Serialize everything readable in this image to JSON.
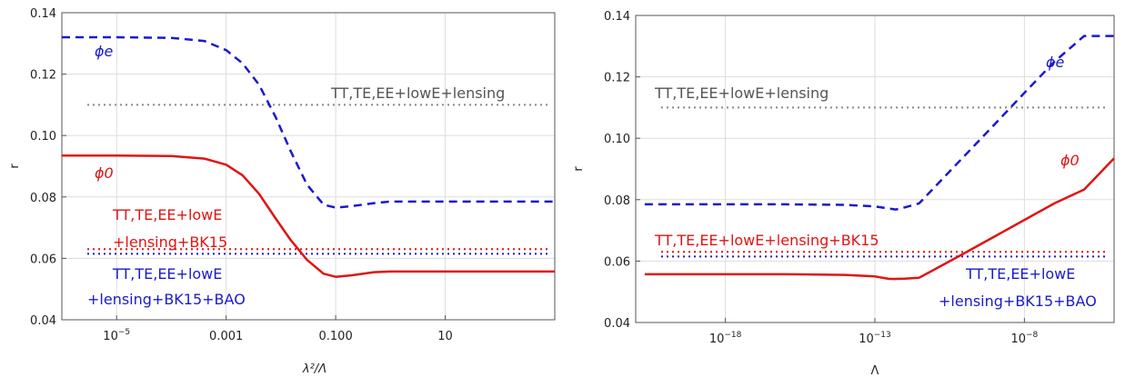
{
  "chart_data": [
    {
      "type": "line",
      "xscale": "log",
      "xlabel": "λ²/Λ",
      "ylabel": "r",
      "xlim": [
        1e-06,
        1000
      ],
      "ylim": [
        0.04,
        0.14
      ],
      "yticks": [
        "0.04",
        "0.06",
        "0.08",
        "0.10",
        "0.12",
        "0.14"
      ],
      "xticks": [
        {
          "value": 1e-05,
          "label": "10",
          "sup": "−5"
        },
        {
          "value": 0.001,
          "label": "0.001",
          "sup": ""
        },
        {
          "value": 0.1,
          "label": "0.100",
          "sup": ""
        },
        {
          "value": 10,
          "label": "10",
          "sup": ""
        }
      ],
      "grid": true,
      "series": [
        {
          "name": "ϕe",
          "color": "#1a1acc",
          "style": "dashed",
          "x": [
            1e-06,
            1e-05,
            0.0001,
            0.0004,
            0.001,
            0.002,
            0.004,
            0.008,
            0.015,
            0.03,
            0.06,
            0.1,
            0.2,
            0.5,
            1,
            10,
            100,
            1000
          ],
          "y": [
            0.132,
            0.132,
            0.1318,
            0.1308,
            0.1278,
            0.1235,
            0.1165,
            0.106,
            0.095,
            0.084,
            0.0775,
            0.0765,
            0.077,
            0.078,
            0.0785,
            0.0785,
            0.0785,
            0.0785
          ]
        },
        {
          "name": "ϕ0",
          "color": "#e01414",
          "style": "solid",
          "x": [
            1e-06,
            1e-05,
            0.0001,
            0.0004,
            0.001,
            0.002,
            0.004,
            0.008,
            0.015,
            0.03,
            0.06,
            0.1,
            0.2,
            0.5,
            1,
            10,
            100,
            1000
          ],
          "y": [
            0.0935,
            0.0935,
            0.0933,
            0.0925,
            0.0905,
            0.087,
            0.081,
            0.073,
            0.066,
            0.0595,
            0.055,
            0.054,
            0.0545,
            0.0555,
            0.0557,
            0.0557,
            0.0557,
            0.0557
          ]
        }
      ],
      "hlines": [
        {
          "y": 0.11,
          "color": "#888888"
        },
        {
          "y": 0.063,
          "color": "#e01414"
        },
        {
          "y": 0.0615,
          "color": "#1a1acc"
        }
      ],
      "annotations": [
        {
          "text": "TT,TE,EE+lowE+lensing",
          "color": "#555555"
        },
        {
          "text": "TT,TE,EE+lowE",
          "color": "#e01414"
        },
        {
          "text": "+lensing+BK15",
          "color": "#e01414"
        },
        {
          "text": "TT,TE,EE+lowE",
          "color": "#1a1acc"
        },
        {
          "text": "+lensing+BK15+BAO",
          "color": "#1a1acc"
        },
        {
          "text": "ϕe",
          "color": "#1a1acc"
        },
        {
          "text": "ϕ0",
          "color": "#e01414"
        }
      ]
    },
    {
      "type": "line",
      "xscale": "log",
      "xlabel": "Λ",
      "ylabel": "r",
      "xlim": [
        1e-21,
        1e-05
      ],
      "ylim": [
        0.04,
        0.14
      ],
      "yticks": [
        "0.04",
        "0.06",
        "0.08",
        "0.10",
        "0.12",
        "0.14"
      ],
      "xticks": [
        {
          "value": 1e-18,
          "label": "10",
          "sup": "−18"
        },
        {
          "value": 1e-13,
          "label": "10",
          "sup": "−13"
        },
        {
          "value": 1e-08,
          "label": "10",
          "sup": "−8"
        }
      ],
      "grid": true,
      "series": [
        {
          "name": "ϕe",
          "color": "#1a1acc",
          "style": "dashed",
          "x": [
            2e-21,
            1e-20,
            1e-18,
            1e-16,
            1e-14,
            1e-13,
            3e-13,
            5e-13,
            1e-12,
            3e-12,
            1e-11,
            1e-10,
            1e-09,
            1e-08,
            1e-07,
            1e-06,
            1e-05
          ],
          "y": [
            0.0785,
            0.0785,
            0.0785,
            0.0785,
            0.0783,
            0.0778,
            0.0771,
            0.0768,
            0.0775,
            0.0788,
            0.0841,
            0.0943,
            0.1045,
            0.1148,
            0.1249,
            0.1333,
            0.1333
          ]
        },
        {
          "name": "ϕ0",
          "color": "#e01414",
          "style": "solid",
          "x": [
            2e-21,
            1e-20,
            1e-18,
            1e-16,
            1e-14,
            1e-13,
            3e-13,
            5e-13,
            1e-12,
            3e-12,
            1e-11,
            1e-10,
            1e-09,
            1e-08,
            1e-07,
            1e-06,
            1e-05
          ],
          "y": [
            0.0557,
            0.0557,
            0.0557,
            0.0557,
            0.0555,
            0.055,
            0.0542,
            0.0542,
            0.0543,
            0.0546,
            0.0573,
            0.0626,
            0.068,
            0.0734,
            0.0788,
            0.0833,
            0.0935
          ]
        }
      ],
      "hlines": [
        {
          "y": 0.11,
          "color": "#888888"
        },
        {
          "y": 0.063,
          "color": "#e01414"
        },
        {
          "y": 0.0615,
          "color": "#1a1acc"
        }
      ],
      "annotations": [
        {
          "text": "TT,TE,EE+lowE+lensing",
          "color": "#555555"
        },
        {
          "text": "TT,TE,EE+lowE+lensing+BK15",
          "color": "#e01414"
        },
        {
          "text": "TT,TE,EE+lowE",
          "color": "#1a1acc"
        },
        {
          "text": "+lensing+BK15+BAO",
          "color": "#1a1acc"
        },
        {
          "text": "ϕe",
          "color": "#1a1acc"
        },
        {
          "text": "ϕ0",
          "color": "#e01414"
        }
      ]
    }
  ]
}
